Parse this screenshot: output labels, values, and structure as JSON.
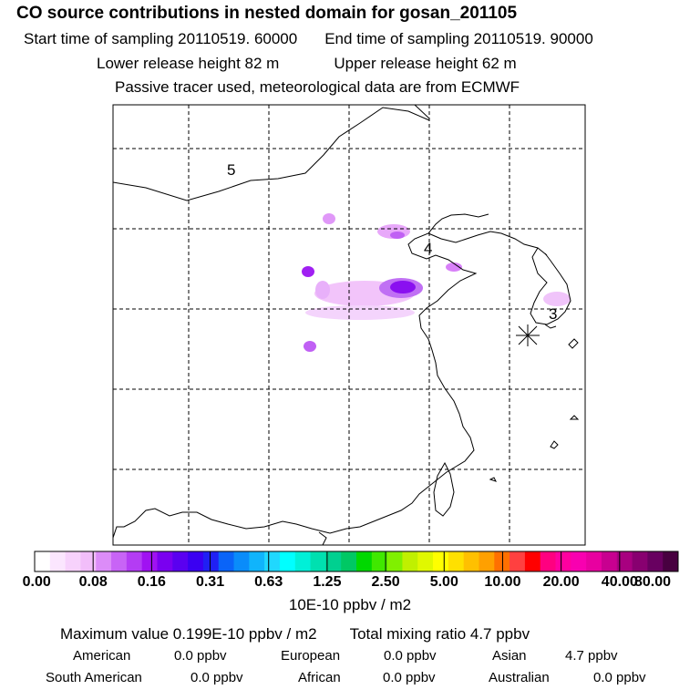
{
  "header": {
    "title": "CO  source contributions in nested domain for gosan_201105",
    "start_time": "Start time of sampling 20110519. 60000",
    "end_time": "End time of sampling 20110519. 90000",
    "lower_release": "Lower release height   82 m",
    "upper_release": "Upper release height   62 m",
    "tracer_note": "Passive tracer used, meteorological data are from ECMWF"
  },
  "map": {
    "region_labels": [
      "5",
      "4",
      "3"
    ],
    "receptor_marker": "receptor-star"
  },
  "colorbar": {
    "colors": [
      "#ffffff",
      "#fbe6fe",
      "#f7d2fc",
      "#f2befa",
      "#dc8cf8",
      "#c864f6",
      "#b43cf4",
      "#a012f2",
      "#7a00f0",
      "#5a00f0",
      "#3a00f2",
      "#2020f4",
      "#0a64f8",
      "#0a8cfa",
      "#10b4fc",
      "#20d8fe",
      "#00ffff",
      "#00f0d8",
      "#00e0b0",
      "#00d090",
      "#00c864",
      "#00d800",
      "#40e800",
      "#80f000",
      "#c0f000",
      "#e0f800",
      "#ffff00",
      "#ffe000",
      "#ffc000",
      "#ffa000",
      "#ff7000",
      "#ff4040",
      "#ff0000",
      "#ff0080",
      "#ff00a0",
      "#f800b0",
      "#e800a0",
      "#c80090",
      "#a80080",
      "#880070",
      "#680060",
      "#480040"
    ],
    "ticks": [
      "0.00",
      "0.08",
      "0.16",
      "0.31",
      "0.63",
      "1.25",
      "2.50",
      "5.00",
      "10.00",
      "20.00",
      "40.00",
      "80.00"
    ],
    "units": "10E-10 ppbv / m2"
  },
  "summary": {
    "max_value": "Maximum value  0.199E-10 ppbv / m2",
    "total_mixing": "Total mixing ratio       4.7 ppbv",
    "regions": [
      {
        "name": "American",
        "value": "0.0 ppbv"
      },
      {
        "name": "European",
        "value": "0.0 ppbv"
      },
      {
        "name": "Asian",
        "value": "4.7 ppbv"
      },
      {
        "name": "South American",
        "value": "0.0 ppbv"
      },
      {
        "name": "African",
        "value": "0.0 ppbv"
      },
      {
        "name": "Australian",
        "value": "0.0 ppbv"
      }
    ]
  }
}
